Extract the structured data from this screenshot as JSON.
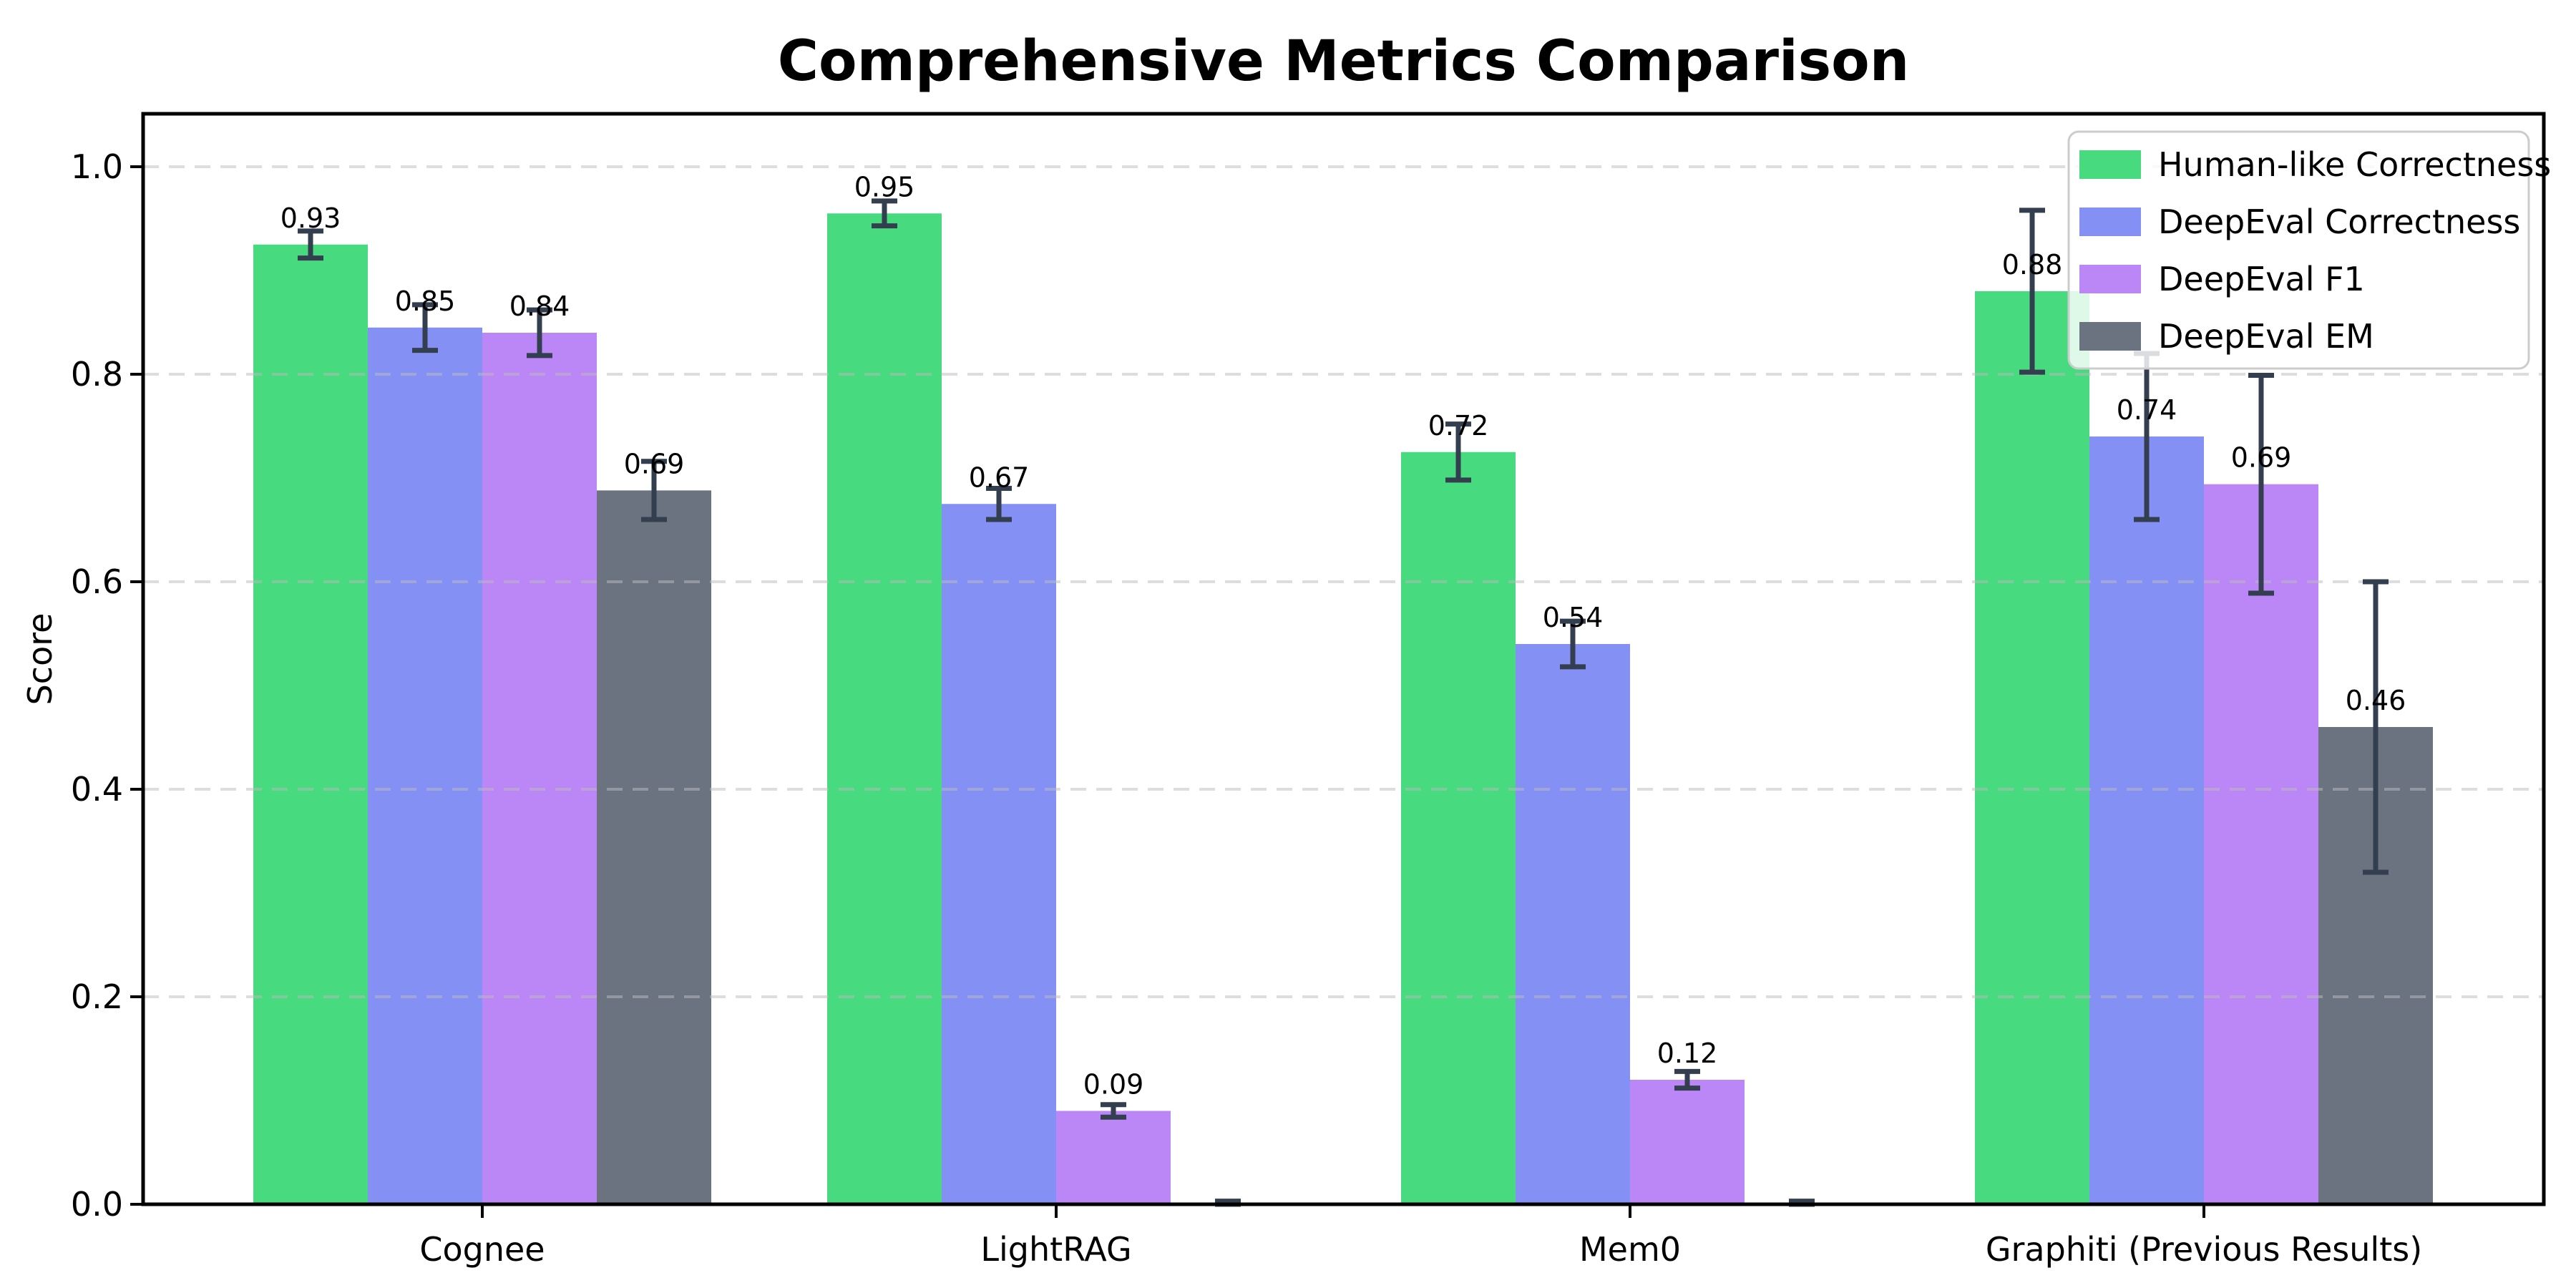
{
  "figure": {
    "background": "#ffffff",
    "spine_color": "#000000",
    "grid_color": "#bcbcbc",
    "text_color": "#000000"
  },
  "chart_data": {
    "type": "bar",
    "title": "Comprehensive Metrics Comparison",
    "xlabel": "",
    "ylabel": "Score",
    "categories": [
      "Cognee",
      "LightRAG",
      "Mem0",
      "Graphiti (Previous Results)"
    ],
    "series": [
      {
        "name": "Human-like Correctness",
        "color": "#48da7f",
        "values": [
          0.925,
          0.955,
          0.725,
          0.88
        ],
        "errors": [
          0.013,
          0.012,
          0.027,
          0.078
        ],
        "labels": [
          "0.93",
          "0.95",
          "0.72",
          "0.88"
        ]
      },
      {
        "name": "DeepEval Correctness",
        "color": "#8590f5",
        "values": [
          0.845,
          0.675,
          0.54,
          0.74
        ],
        "errors": [
          0.022,
          0.015,
          0.022,
          0.08
        ],
        "labels": [
          "0.85",
          "0.67",
          "0.54",
          "0.74"
        ]
      },
      {
        "name": "DeepEval F1",
        "color": "#bb86f6",
        "values": [
          0.84,
          0.09,
          0.12,
          0.694
        ],
        "errors": [
          0.022,
          0.006,
          0.008,
          0.105
        ],
        "labels": [
          "0.84",
          "0.09",
          "0.12",
          "0.69"
        ]
      },
      {
        "name": "DeepEval EM",
        "color": "#6b7280",
        "values": [
          0.688,
          0.0,
          0.0,
          0.46
        ],
        "errors": [
          0.028,
          0.003,
          0.003,
          0.14
        ],
        "labels": [
          "0.69",
          "",
          "",
          "0.46"
        ]
      }
    ],
    "yticks": [
      "0.0",
      "0.2",
      "0.4",
      "0.6",
      "0.8",
      "1.0"
    ],
    "ylim": [
      0,
      1.05
    ],
    "grid": "dashed-horizontal",
    "legend_position": "upper right",
    "errorbar_color": "#333e4f",
    "legend_border_color": "#cccccc"
  }
}
